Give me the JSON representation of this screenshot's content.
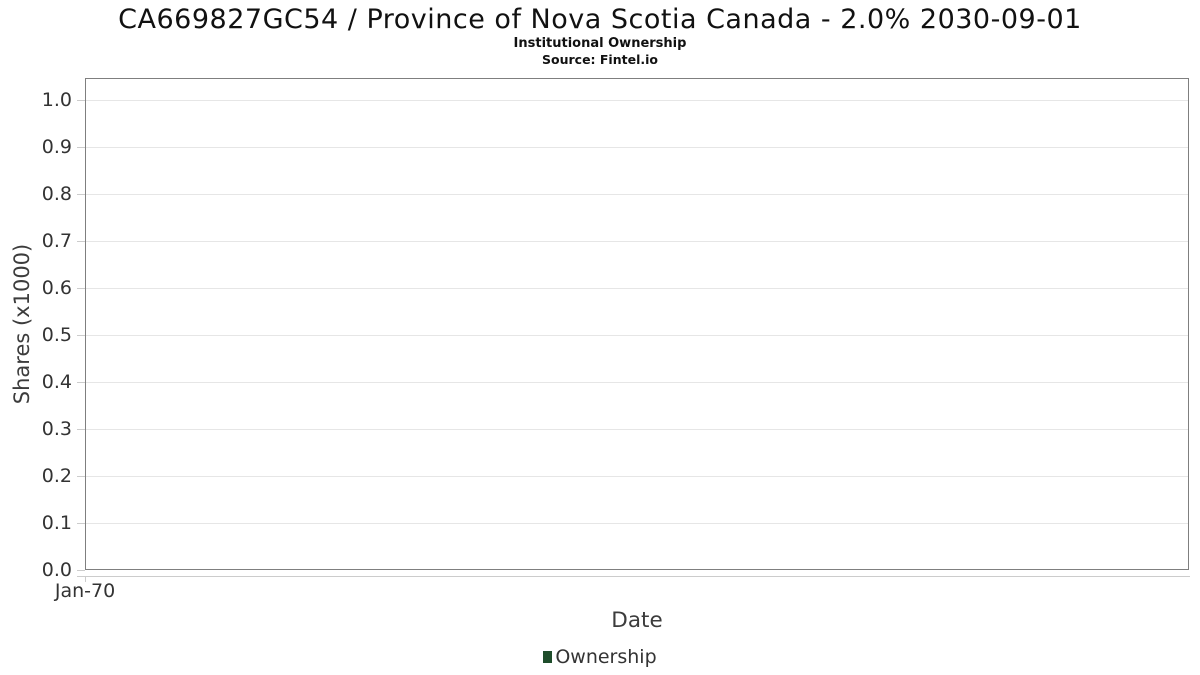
{
  "chart_data": {
    "type": "line",
    "title": "CA669827GC54 / Province of Nova Scotia Canada - 2.0% 2030-09-01",
    "subtitle": "Institutional Ownership",
    "source_label": "Source: Fintel.io",
    "xlabel": "Date",
    "ylabel": "Shares (x1000)",
    "x_ticks": [
      "Jan-70"
    ],
    "y_ticks": [
      0.0,
      0.1,
      0.2,
      0.3,
      0.4,
      0.5,
      0.6,
      0.7,
      0.8,
      0.9,
      1.0
    ],
    "ylim": [
      0.0,
      1.05
    ],
    "grid": true,
    "grid_color": "#e6e6e6",
    "plot_border_color": "#7f7f7f",
    "legend_position": "bottom-center",
    "series": [
      {
        "name": "Ownership",
        "color": "#1e4d2b",
        "x": [],
        "values": []
      }
    ]
  }
}
